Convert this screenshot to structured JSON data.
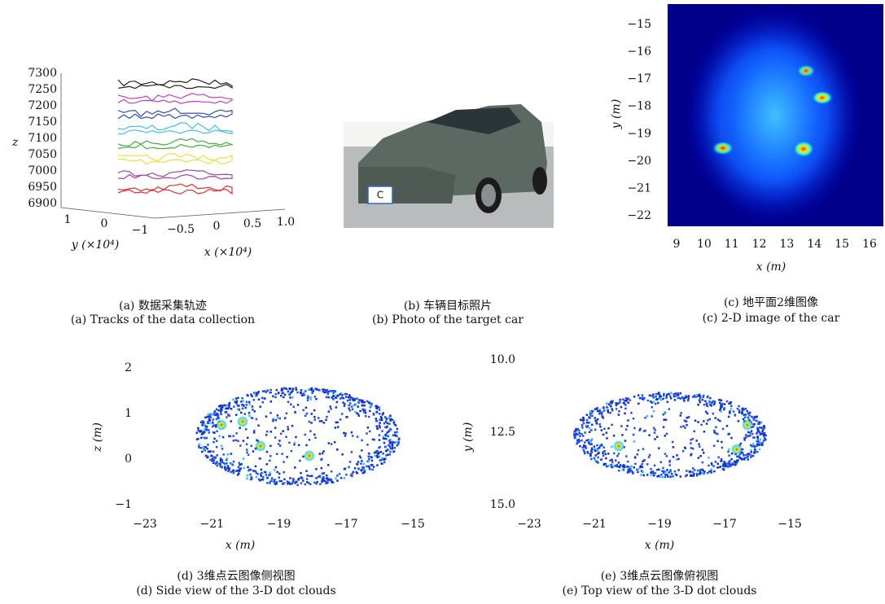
{
  "panels": [
    {
      "caption_cn": "(a) 数据采集轨迹",
      "caption_en": "(a) Tracks of the data collection",
      "z_label": "z",
      "z_ticks": [
        "7300",
        "7250",
        "7200",
        "7150",
        "7100",
        "7050",
        "7000",
        "6950",
        "6900"
      ],
      "y_label": "y (×10⁴)",
      "y_ticks": [
        "1",
        "0",
        "−1"
      ],
      "x_label": "x (×10⁴)",
      "x_ticks": [
        "−0.5",
        "0",
        "0.5",
        "1.0"
      ]
    },
    {
      "caption_cn": "(b) 车辆目标照片",
      "caption_en": "(b) Photo of the target car",
      "plate": "C"
    },
    {
      "caption_cn": "(c) 地平面2维图像",
      "caption_en": "(c) 2-D image of the car",
      "y_label": "y (m)",
      "y_ticks": [
        "−15",
        "−16",
        "−17",
        "−18",
        "−19",
        "−20",
        "−21",
        "−22"
      ],
      "x_label": "x (m)",
      "x_ticks": [
        "9",
        "10",
        "11",
        "12",
        "13",
        "14",
        "15",
        "16"
      ]
    },
    {
      "caption_cn": "(d) 3维点云图像侧视图",
      "caption_en": "(d) Side view of the 3-D dot clouds",
      "y_label": "z (m)",
      "y_ticks": [
        "2",
        "1",
        "0",
        "−1"
      ],
      "x_label": "x (m)",
      "x_ticks": [
        "−23",
        "−21",
        "−19",
        "−17",
        "−15"
      ]
    },
    {
      "caption_cn": "(e) 3维点云图像俯视图",
      "caption_en": "(e) Top view of the 3-D dot clouds",
      "y_label": "y (m)",
      "y_ticks": [
        "10.0",
        "12.5",
        "15.0"
      ],
      "x_label": "x (m)",
      "x_ticks": [
        "−23",
        "−21",
        "−19",
        "−17",
        "−15"
      ]
    }
  ]
}
